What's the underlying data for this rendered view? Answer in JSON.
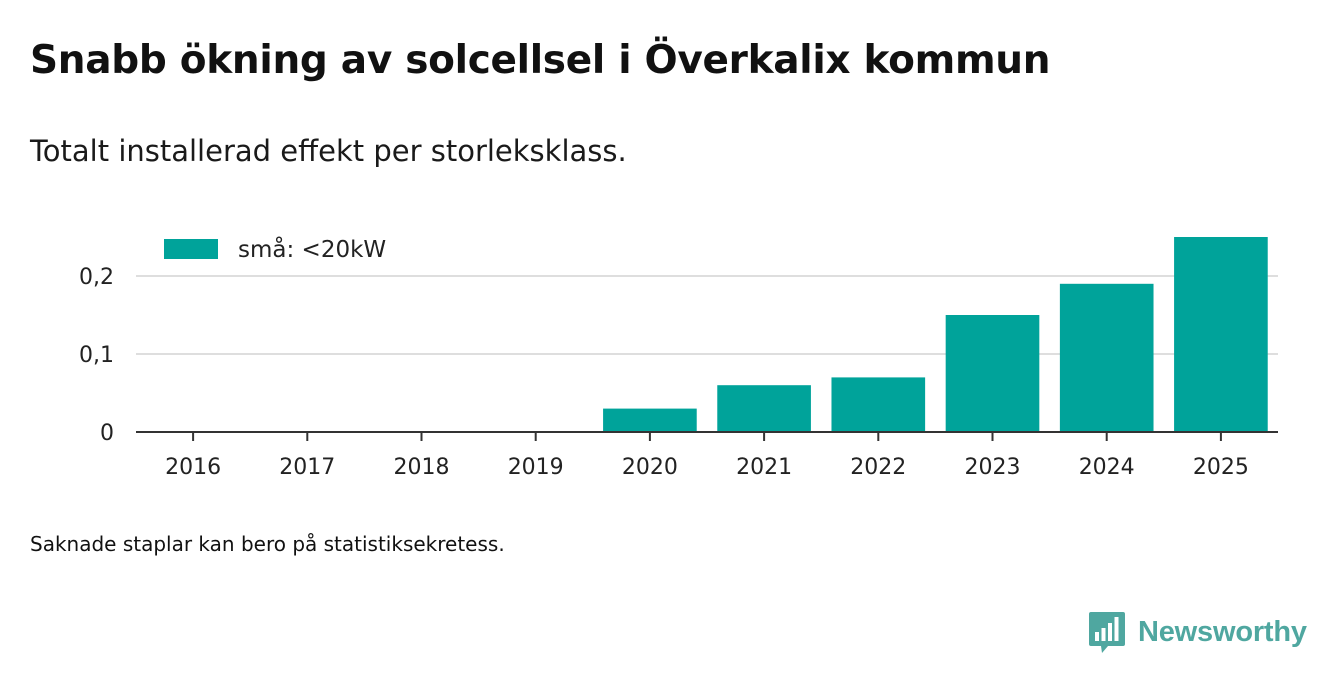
{
  "colors": {
    "bar": "#00a39a",
    "grid": "#dedede",
    "axis": "#333333",
    "text": "#222222",
    "brand": "#4fa7a0"
  },
  "chart_data": {
    "type": "bar",
    "title": "Snabb ökning av solcellsel i Överkalix kommun",
    "subtitle": "Totalt installerad effekt per storleksklass.",
    "categories": [
      "2016",
      "2017",
      "2018",
      "2019",
      "2020",
      "2021",
      "2022",
      "2023",
      "2024",
      "2025"
    ],
    "series": [
      {
        "name": "små: <20kW",
        "values": [
          0,
          0,
          0,
          0,
          0.03,
          0.06,
          0.07,
          0.15,
          0.19,
          0.25
        ]
      }
    ],
    "yticks": [
      0,
      0.1,
      0.2
    ],
    "ytick_labels": [
      "0",
      "0,1",
      "0,2"
    ],
    "ylim": [
      0,
      0.25
    ],
    "xlabel": "",
    "ylabel": "",
    "grid": true,
    "legend_position": "top-left",
    "footnote": "Saknade staplar kan bero på statistiksekretess."
  },
  "brand": {
    "name": "Newsworthy",
    "icon": "newsworthy-logo-icon"
  }
}
